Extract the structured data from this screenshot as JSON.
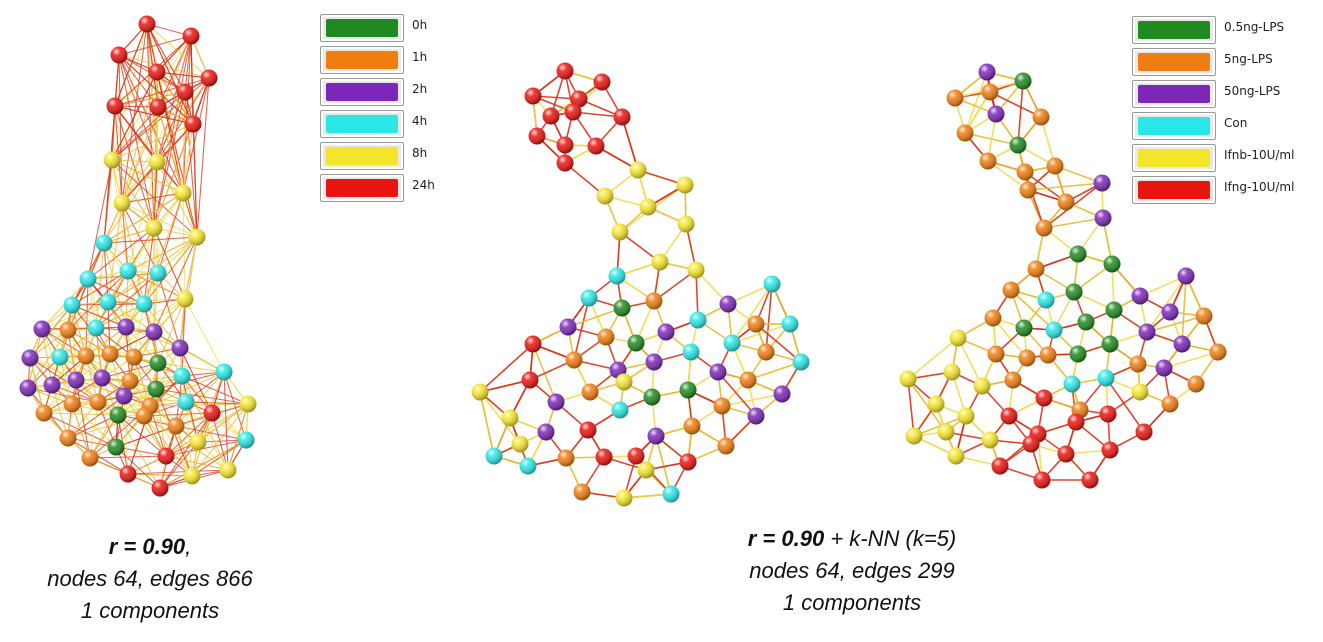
{
  "legend_left": {
    "items": [
      {
        "label": "0h",
        "color": "#1f8a1f"
      },
      {
        "label": "1h",
        "color": "#ef7d10"
      },
      {
        "label": "2h",
        "color": "#7b27b8"
      },
      {
        "label": "4h",
        "color": "#2ae6e6"
      },
      {
        "label": "8h",
        "color": "#f5e52a"
      },
      {
        "label": "24h",
        "color": "#e8140f"
      }
    ]
  },
  "legend_right": {
    "items": [
      {
        "label": "0.5ng-LPS",
        "color": "#1f8a1f"
      },
      {
        "label": "5ng-LPS",
        "color": "#ef7d10"
      },
      {
        "label": "50ng-LPS",
        "color": "#7b27b8"
      },
      {
        "label": "Con",
        "color": "#2ae6e6"
      },
      {
        "label": "Ifnb-10U/ml",
        "color": "#f5e52a"
      },
      {
        "label": "Ifng-10U/ml",
        "color": "#e8140f"
      }
    ]
  },
  "caption_left": {
    "line1_bold": "r = 0.90",
    "line1_rest": ",",
    "line2": "nodes 64, edges 866",
    "line3": "1 components"
  },
  "caption_right": {
    "line1_bold": "r = 0.90",
    "line1_rest": " + k-NN (k=5)",
    "line2": "nodes 64, edges 299",
    "line3": "1 components"
  },
  "node_colors": {
    "G": "#1f8a1f",
    "O": "#ef7d10",
    "P": "#7b27b8",
    "C": "#2ae6e6",
    "Y": "#f5e52a",
    "R": "#e8140f"
  },
  "edge_colors": [
    "#e8b92a",
    "#d9341a",
    "#f0dc50",
    "#c9c9a0"
  ]
}
